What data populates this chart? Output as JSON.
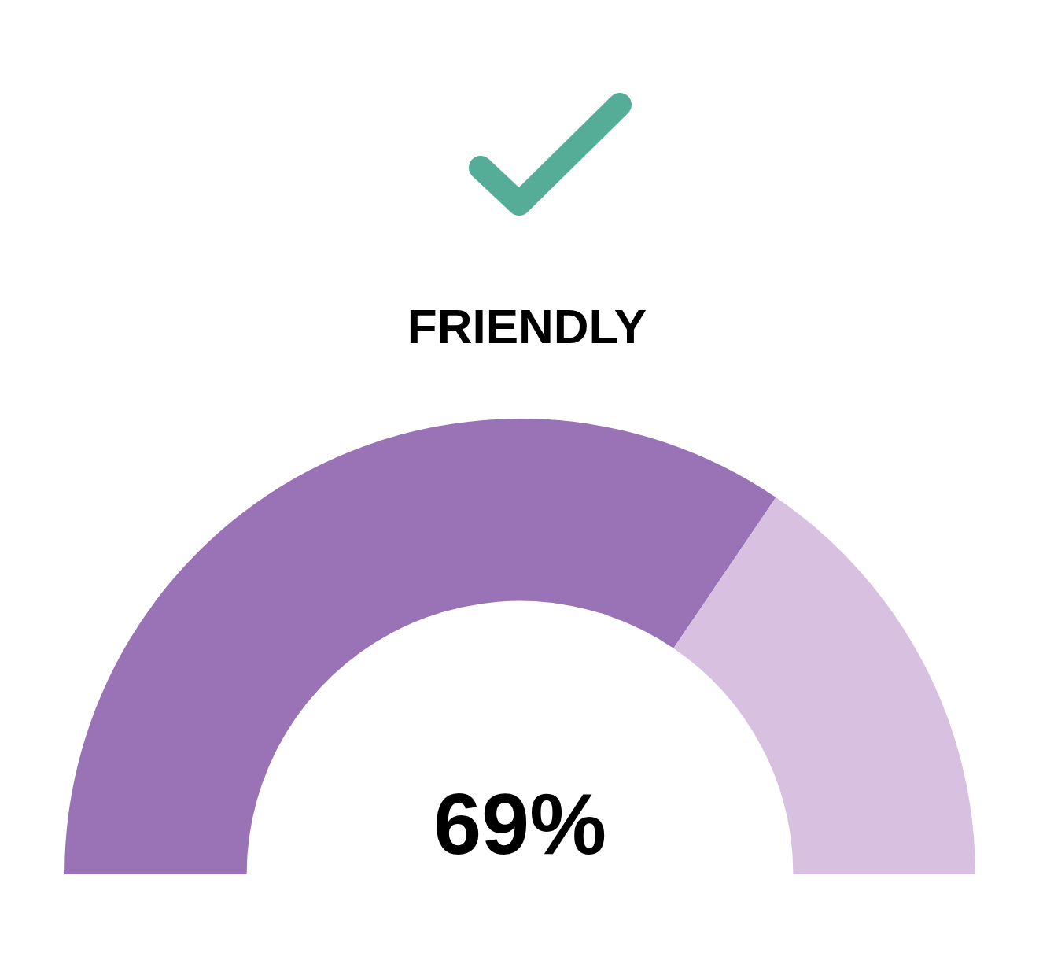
{
  "chart_data": {
    "type": "donut",
    "title": "FRIENDLY",
    "categories": [
      null,
      null
    ],
    "values": [
      69,
      31
    ],
    "colors": [
      "#9a72b6",
      "#d7c0e0"
    ],
    "value_labels": [
      "69%",
      null
    ]
  }
}
